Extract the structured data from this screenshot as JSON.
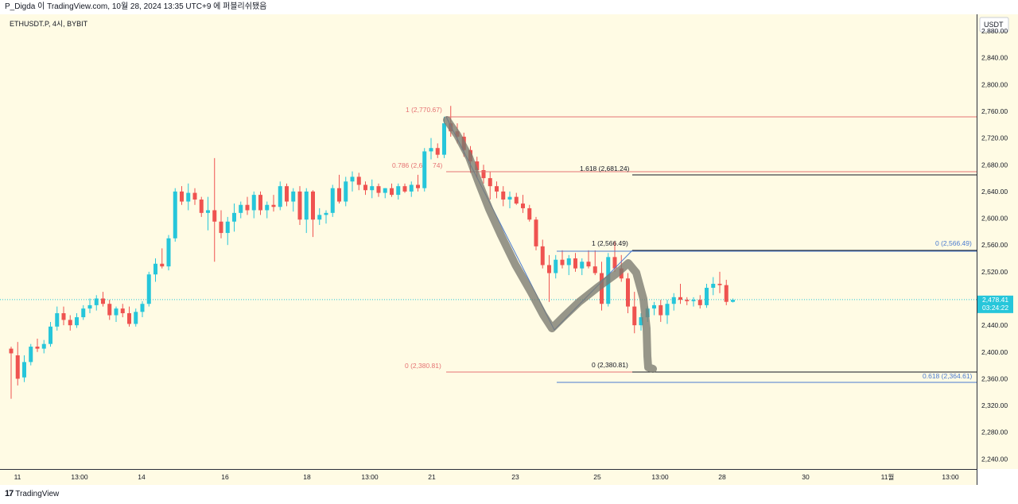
{
  "header": {
    "text": "P_Digda 이 TradingView.com, 10월 28, 2024 13:35 UTC+9 에 퍼블리쉬됐음"
  },
  "symbol": {
    "text": "ETHUSDT.P, 4시, BYBIT"
  },
  "price_axis": {
    "currency": "USDT",
    "last_price": "2,478.41",
    "countdown": "03:24:22"
  },
  "footer": {
    "brand": "TradingView"
  },
  "colors": {
    "background": "#fffbe4",
    "up": "#26c6da",
    "down": "#ef5350",
    "fib_red": "#e57373",
    "fib_blue": "#4a7bd0",
    "stroke_highlight": "#7a7a70"
  },
  "annotations": {
    "fib_1_label": "1 (2,770.67)",
    "fib_0786_label": "0.786 (2,6",
    "fib_0786_tail": "74)",
    "fib_0_label": "0 (2,380.81)",
    "ext_1618_label": "1.618 (2,681.24)",
    "ext_1_label": "1 (2,566.49)",
    "ext_0_label": "0 (2,380.81)",
    "blue_0_label": "0 (2,566.49)",
    "blue_0618_label": "0.618 (2,364.61)"
  },
  "chart_data": {
    "type": "candlestick",
    "symbol": "ETHUSDT.P",
    "timeframe": "4시",
    "exchange": "BYBIT",
    "ylim": [
      2225,
      2905
    ],
    "y_ticks": [
      2240,
      2280,
      2320,
      2360,
      2400,
      2440,
      2480,
      2520,
      2560,
      2600,
      2640,
      2680,
      2720,
      2760,
      2800,
      2840,
      2880
    ],
    "y_tick_labels": [
      "2,240.00",
      "2,280.00",
      "2,320.00",
      "2,360.00",
      "2,400.00",
      "2,440.00",
      "2,480.00",
      "2,520.00",
      "2,560.00",
      "2,600.00",
      "2,640.00",
      "2,680.00",
      "2,720.00",
      "2,760.00",
      "2,800.00",
      "2,840.00",
      "2,880.00"
    ],
    "x_ticks": [
      "11",
      "13:00",
      "14",
      "16",
      "18",
      "13:00",
      "21",
      "23",
      "25",
      "13:00",
      "28",
      "30",
      "11월",
      "13:00"
    ],
    "last_price": 2478.41,
    "candles": [
      [
        2405,
        2408,
        2330,
        2398
      ],
      [
        2395,
        2415,
        2350,
        2360
      ],
      [
        2362,
        2395,
        2355,
        2385
      ],
      [
        2385,
        2412,
        2380,
        2408
      ],
      [
        2408,
        2420,
        2400,
        2405
      ],
      [
        2405,
        2418,
        2398,
        2412
      ],
      [
        2412,
        2445,
        2408,
        2438
      ],
      [
        2438,
        2468,
        2432,
        2458
      ],
      [
        2458,
        2468,
        2440,
        2448
      ],
      [
        2448,
        2455,
        2432,
        2440
      ],
      [
        2440,
        2458,
        2436,
        2452
      ],
      [
        2452,
        2470,
        2448,
        2465
      ],
      [
        2465,
        2480,
        2458,
        2470
      ],
      [
        2470,
        2485,
        2462,
        2480
      ],
      [
        2480,
        2490,
        2468,
        2472
      ],
      [
        2472,
        2478,
        2448,
        2455
      ],
      [
        2455,
        2468,
        2445,
        2465
      ],
      [
        2465,
        2472,
        2452,
        2458
      ],
      [
        2458,
        2468,
        2438,
        2442
      ],
      [
        2442,
        2465,
        2438,
        2460
      ],
      [
        2460,
        2476,
        2452,
        2472
      ],
      [
        2472,
        2520,
        2468,
        2516
      ],
      [
        2516,
        2540,
        2505,
        2532
      ],
      [
        2532,
        2555,
        2525,
        2528
      ],
      [
        2528,
        2575,
        2522,
        2570
      ],
      [
        2570,
        2645,
        2565,
        2640
      ],
      [
        2640,
        2648,
        2620,
        2625
      ],
      [
        2625,
        2652,
        2612,
        2638
      ],
      [
        2638,
        2645,
        2620,
        2628
      ],
      [
        2628,
        2632,
        2602,
        2608
      ],
      [
        2608,
        2632,
        2582,
        2612
      ],
      [
        2612,
        2690,
        2535,
        2595
      ],
      [
        2595,
        2612,
        2570,
        2578
      ],
      [
        2578,
        2602,
        2560,
        2595
      ],
      [
        2595,
        2622,
        2580,
        2608
      ],
      [
        2608,
        2625,
        2600,
        2620
      ],
      [
        2620,
        2632,
        2605,
        2612
      ],
      [
        2612,
        2640,
        2600,
        2635
      ],
      [
        2635,
        2640,
        2605,
        2612
      ],
      [
        2612,
        2625,
        2600,
        2620
      ],
      [
        2620,
        2635,
        2610,
        2617
      ],
      [
        2617,
        2655,
        2612,
        2648
      ],
      [
        2648,
        2652,
        2618,
        2625
      ],
      [
        2625,
        2645,
        2610,
        2640
      ],
      [
        2640,
        2648,
        2590,
        2598
      ],
      [
        2598,
        2645,
        2578,
        2640
      ],
      [
        2640,
        2642,
        2572,
        2598
      ],
      [
        2598,
        2615,
        2590,
        2605
      ],
      [
        2605,
        2612,
        2592,
        2608
      ],
      [
        2608,
        2650,
        2602,
        2645
      ],
      [
        2645,
        2665,
        2622,
        2625
      ],
      [
        2625,
        2662,
        2618,
        2655
      ],
      [
        2655,
        2670,
        2640,
        2662
      ],
      [
        2662,
        2668,
        2642,
        2650
      ],
      [
        2650,
        2655,
        2635,
        2642
      ],
      [
        2642,
        2658,
        2630,
        2648
      ],
      [
        2648,
        2652,
        2632,
        2638
      ],
      [
        2638,
        2645,
        2630,
        2645
      ],
      [
        2645,
        2652,
        2632,
        2635
      ],
      [
        2635,
        2652,
        2628,
        2648
      ],
      [
        2648,
        2652,
        2638,
        2640
      ],
      [
        2640,
        2655,
        2632,
        2650
      ],
      [
        2650,
        2665,
        2640,
        2645
      ],
      [
        2645,
        2705,
        2640,
        2700
      ],
      [
        2700,
        2720,
        2688,
        2705
      ],
      [
        2705,
        2712,
        2690,
        2695
      ],
      [
        2695,
        2752,
        2690,
        2742
      ],
      [
        2742,
        2768,
        2722,
        2730
      ],
      [
        2730,
        2742,
        2712,
        2722
      ],
      [
        2722,
        2728,
        2692,
        2702
      ],
      [
        2702,
        2708,
        2668,
        2685
      ],
      [
        2685,
        2692,
        2660,
        2672
      ],
      [
        2672,
        2680,
        2652,
        2660
      ],
      [
        2660,
        2670,
        2628,
        2648
      ],
      [
        2648,
        2655,
        2630,
        2640
      ],
      [
        2640,
        2648,
        2618,
        2628
      ],
      [
        2628,
        2640,
        2615,
        2632
      ],
      [
        2632,
        2638,
        2620,
        2622
      ],
      [
        2622,
        2635,
        2608,
        2615
      ],
      [
        2615,
        2620,
        2595,
        2598
      ],
      [
        2598,
        2602,
        2552,
        2558
      ],
      [
        2558,
        2568,
        2525,
        2530
      ],
      [
        2530,
        2545,
        2475,
        2518
      ],
      [
        2518,
        2545,
        2510,
        2538
      ],
      [
        2538,
        2552,
        2525,
        2530
      ],
      [
        2530,
        2545,
        2515,
        2540
      ],
      [
        2540,
        2548,
        2520,
        2525
      ],
      [
        2525,
        2540,
        2515,
        2535
      ],
      [
        2535,
        2552,
        2525,
        2528
      ],
      [
        2528,
        2552,
        2515,
        2518
      ],
      [
        2518,
        2535,
        2462,
        2472
      ],
      [
        2472,
        2548,
        2468,
        2542
      ],
      [
        2542,
        2565,
        2520,
        2525
      ],
      [
        2525,
        2545,
        2505,
        2510
      ],
      [
        2510,
        2518,
        2458,
        2468
      ],
      [
        2468,
        2490,
        2428,
        2440
      ],
      [
        2440,
        2458,
        2432,
        2452
      ],
      [
        2452,
        2468,
        2445,
        2465
      ],
      [
        2465,
        2475,
        2455,
        2470
      ],
      [
        2470,
        2478,
        2445,
        2455
      ],
      [
        2455,
        2478,
        2442,
        2472
      ],
      [
        2472,
        2488,
        2462,
        2482
      ],
      [
        2482,
        2502,
        2472,
        2478
      ],
      [
        2478,
        2482,
        2470,
        2476
      ],
      [
        2476,
        2482,
        2468,
        2478
      ],
      [
        2478,
        2485,
        2465,
        2470
      ],
      [
        2470,
        2502,
        2466,
        2496
      ],
      [
        2496,
        2512,
        2485,
        2502
      ],
      [
        2502,
        2520,
        2488,
        2500
      ],
      [
        2500,
        2508,
        2470,
        2475
      ],
      [
        2475,
        2480,
        2474,
        2478
      ]
    ]
  }
}
